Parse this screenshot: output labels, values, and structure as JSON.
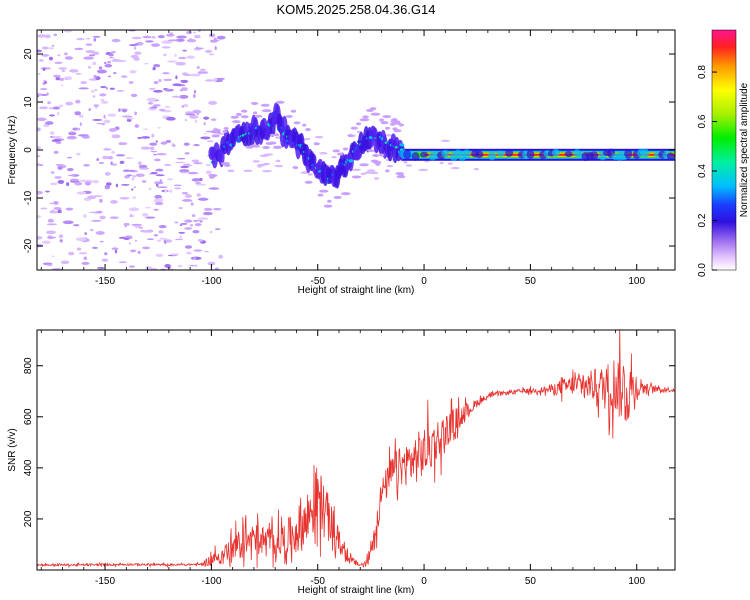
{
  "chart_data": [
    {
      "type": "heatmap",
      "title": "KOM5.2025.258.04.36.G14",
      "xlabel": "Height of straight line (km)",
      "ylabel": "Frequency (Hz)",
      "xlim": [
        -182,
        118
      ],
      "ylim": [
        -25,
        25
      ],
      "xticks": [
        -150,
        -100,
        -50,
        0,
        50,
        100
      ],
      "yticks": [
        -20,
        -10,
        0,
        10,
        20
      ],
      "colorbar": {
        "label": "Normalized spectral amplitude",
        "range": [
          0,
          0.97
        ],
        "ticks": [
          0.0,
          0.2,
          0.4,
          0.6,
          0.8
        ]
      },
      "ridge": [
        [
          -100,
          -2
        ],
        [
          -95,
          0
        ],
        [
          -90,
          2
        ],
        [
          -85,
          3
        ],
        [
          -80,
          4
        ],
        [
          -75,
          4
        ],
        [
          -70,
          7
        ],
        [
          -65,
          3
        ],
        [
          -60,
          2
        ],
        [
          -55,
          -1
        ],
        [
          -50,
          -4
        ],
        [
          -45,
          -6
        ],
        [
          -40,
          -5
        ],
        [
          -35,
          -2
        ],
        [
          -30,
          1
        ],
        [
          -25,
          3
        ],
        [
          -20,
          2
        ],
        [
          -15,
          1
        ],
        [
          -10,
          0
        ],
        [
          -5,
          0
        ],
        [
          0,
          -1
        ],
        [
          10,
          -1
        ],
        [
          20,
          -1
        ],
        [
          30,
          -1
        ],
        [
          40,
          -1
        ],
        [
          50,
          -1
        ],
        [
          60,
          -1
        ],
        [
          70,
          -1
        ],
        [
          80,
          -1
        ],
        [
          90,
          -1
        ],
        [
          100,
          -1
        ],
        [
          110,
          -1
        ],
        [
          118,
          -1
        ]
      ]
    },
    {
      "type": "line",
      "xlabel": "Height of straight line (km)",
      "ylabel": "SNR (v/v)",
      "xlim": [
        -182,
        118
      ],
      "ylim": [
        0,
        940
      ],
      "xticks": [
        -150,
        -100,
        -50,
        0,
        50,
        100
      ],
      "yticks": [
        200,
        400,
        600,
        800
      ],
      "series": [
        {
          "name": "SNR",
          "color": "#e8322e",
          "x": [
            -182,
            -160,
            -140,
            -120,
            -105,
            -100,
            -95,
            -90,
            -85,
            -80,
            -75,
            -70,
            -65,
            -60,
            -55,
            -50,
            -45,
            -40,
            -35,
            -30,
            -27,
            -25,
            -22,
            -20,
            -15,
            -10,
            -5,
            0,
            5,
            10,
            15,
            20,
            25,
            30,
            35,
            40,
            45,
            50,
            55,
            60,
            65,
            70,
            75,
            80,
            85,
            90,
            95,
            100,
            105,
            110,
            118
          ],
          "y": [
            20,
            20,
            22,
            20,
            22,
            40,
            60,
            80,
            110,
            120,
            115,
            110,
            120,
            150,
            200,
            290,
            200,
            110,
            40,
            20,
            25,
            80,
            200,
            300,
            380,
            410,
            430,
            460,
            500,
            540,
            590,
            620,
            655,
            680,
            690,
            695,
            700,
            702,
            705,
            708,
            715,
            725,
            720,
            725,
            715,
            730,
            700,
            720,
            712,
            708,
            705
          ],
          "noise": [
            5,
            5,
            5,
            5,
            5,
            30,
            45,
            60,
            80,
            80,
            70,
            75,
            90,
            110,
            140,
            160,
            120,
            60,
            20,
            12,
            15,
            60,
            80,
            70,
            90,
            100,
            120,
            130,
            110,
            90,
            60,
            40,
            20,
            12,
            10,
            10,
            10,
            12,
            14,
            25,
            40,
            50,
            60,
            80,
            110,
            150,
            180,
            70,
            20,
            15,
            10
          ]
        }
      ]
    }
  ]
}
